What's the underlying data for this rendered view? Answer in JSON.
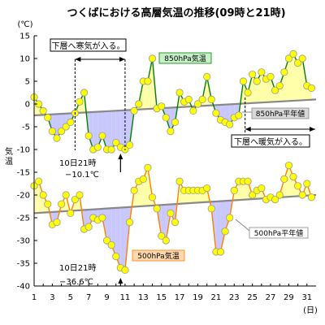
{
  "chart_data": {
    "type": "line",
    "title": "つくばにおける高層気温の推移(09時と21時)",
    "y_unit_label": "(℃)",
    "ylabel": "気温",
    "x_unit_label": "(日)",
    "xlim": [
      1,
      32
    ],
    "ylim": [
      -40,
      15
    ],
    "x_ticks": [
      1,
      3,
      5,
      7,
      9,
      11,
      13,
      15,
      17,
      19,
      21,
      23,
      25,
      27,
      29,
      31
    ],
    "y_ticks": [
      15,
      10,
      5,
      0,
      -5,
      -10,
      -15,
      -20,
      -25,
      -30,
      -35,
      -40
    ],
    "grid": false,
    "series": [
      {
        "name": "850hPa気温",
        "color": "#ffff00",
        "line_color": "#008000",
        "fill_above": "#ffffaa",
        "fill_below": "#c8c8ff",
        "x": [
          1,
          1.5,
          2,
          2.5,
          3,
          3.5,
          4,
          4.5,
          5,
          5.5,
          6,
          6.5,
          7,
          7.5,
          8,
          8.5,
          9,
          9.5,
          10,
          10.5,
          11,
          11.5,
          12,
          12.5,
          13,
          13.5,
          14,
          14.5,
          15,
          15.5,
          16,
          16.5,
          17,
          17.5,
          18,
          18.5,
          19,
          19.5,
          20,
          20.5,
          21,
          21.5,
          22,
          22.5,
          23,
          23.5,
          24,
          24.5,
          25,
          25.5,
          26,
          26.5,
          27,
          27.5,
          28,
          28.5,
          29,
          29.5,
          30,
          30.5,
          31,
          31.5
        ],
        "values": [
          1.5,
          0,
          -1.5,
          -3,
          -6,
          -7.5,
          -6,
          -5,
          -4,
          -2,
          0.5,
          2.5,
          -7,
          -10,
          -9.5,
          -7,
          -10,
          -10,
          -8.5,
          -9.5,
          -10,
          -9,
          -1.5,
          0,
          5,
          5,
          10,
          -1,
          -0.5,
          -3,
          -6,
          -4,
          2.5,
          0.5,
          1,
          -1.5,
          0,
          1,
          6,
          1,
          -2,
          -3.5,
          -4,
          -4.5,
          -3,
          -2.5,
          5,
          2.5,
          6.5,
          5,
          7,
          5.5,
          6,
          3,
          4,
          7,
          10,
          11,
          9,
          10,
          4,
          3.5
        ]
      },
      {
        "name": "850hPa平年値",
        "color": "#888888",
        "x": [
          1,
          32
        ],
        "values": [
          -2.5,
          1
        ]
      },
      {
        "name": "500hPa気温",
        "color": "#ffff00",
        "line_color": "#ff8000",
        "fill_above": "#ffffaa",
        "fill_below": "#c8c8ff",
        "x": [
          1,
          1.5,
          2,
          2.5,
          3,
          3.5,
          4,
          4.5,
          5,
          5.5,
          6,
          6.5,
          7,
          7.5,
          8,
          8.5,
          9,
          9.5,
          10,
          10.5,
          11,
          11.5,
          12,
          12.5,
          13,
          13.5,
          14,
          14.5,
          15,
          15.5,
          16,
          16.5,
          17,
          17.5,
          18,
          18.5,
          19,
          19.5,
          20,
          20.5,
          21,
          21.5,
          22,
          22.5,
          23,
          23.5,
          24,
          24.5,
          25,
          25.5,
          26,
          26.5,
          27,
          27.5,
          28,
          28.5,
          29,
          29.5,
          30,
          30.5,
          31,
          31.5
        ],
        "values": [
          -18,
          -17,
          -20,
          -22,
          -26.5,
          -26,
          -22,
          -20,
          -24,
          -21,
          -20,
          -27.5,
          -27,
          -25,
          -25.5,
          -25,
          -30,
          -31,
          -33.5,
          -36,
          -36.5,
          -26,
          -19,
          -17,
          -16.5,
          -14,
          -20.5,
          -23,
          -29,
          -30,
          -24,
          -26,
          -17,
          -19,
          -19,
          -19,
          -19,
          -19,
          -18.5,
          -23,
          -32.5,
          -32.5,
          -28,
          -25,
          -19,
          -17,
          -17,
          -17,
          -20,
          -19,
          -18.5,
          -21,
          -20.5,
          -21,
          -20,
          -16.5,
          -13.5,
          -16,
          -18,
          -20,
          -17.5,
          -20.5
        ]
      },
      {
        "name": "500hPa平年値",
        "color": "#888888",
        "x": [
          1,
          32
        ],
        "values": [
          -24,
          -20
        ]
      }
    ],
    "annotations": [
      {
        "id": "cold",
        "text": "下層へ寒気が入る。",
        "x_range": [
          5.5,
          11
        ]
      },
      {
        "id": "warm",
        "text": "下層へ暖気が入る。",
        "x_range": [
          24.2,
          33
        ]
      },
      {
        "id": "min850",
        "text1": "10日21時",
        "text2": "−10.1℃",
        "x": 10.5,
        "y": -10.1
      },
      {
        "id": "min500",
        "text1": "10日21時",
        "text2": "−36.6℃",
        "x": 10.5,
        "y": -36.6
      }
    ]
  }
}
